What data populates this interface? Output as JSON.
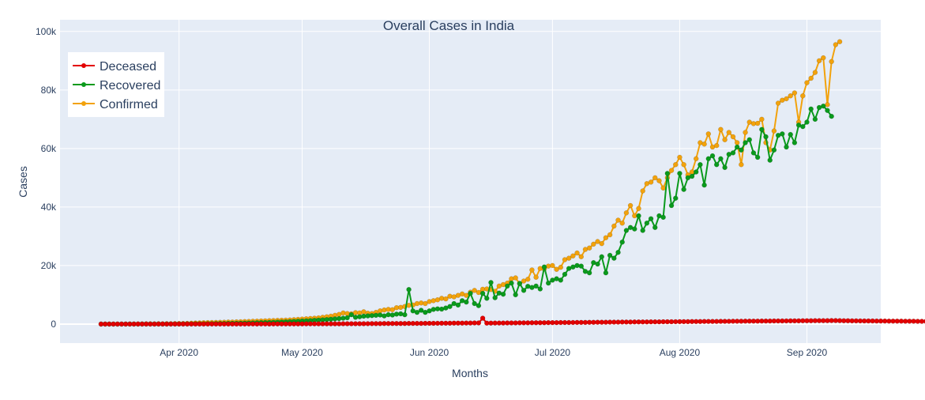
{
  "chart_data": {
    "type": "line",
    "title": "Overall Cases in India",
    "xlabel": "Months",
    "ylabel": "Cases",
    "x_start": "2020-03-13",
    "x_end": "2020-09-09",
    "x_range": [
      "2020-03-03",
      "2020-09-19"
    ],
    "x_ticks": [
      {
        "date": "2020-04-01",
        "label": "Apr 2020"
      },
      {
        "date": "2020-05-01",
        "label": "May 2020"
      },
      {
        "date": "2020-06-01",
        "label": "Jun 2020"
      },
      {
        "date": "2020-07-01",
        "label": "Jul 2020"
      },
      {
        "date": "2020-08-01",
        "label": "Aug 2020"
      },
      {
        "date": "2020-09-01",
        "label": "Sep 2020"
      }
    ],
    "ylim": [
      -6500,
      104000
    ],
    "y_ticks": [
      {
        "value": 0,
        "label": "0"
      },
      {
        "value": 20000,
        "label": "20k"
      },
      {
        "value": 40000,
        "label": "40k"
      },
      {
        "value": 60000,
        "label": "60k"
      },
      {
        "value": 80000,
        "label": "80k"
      },
      {
        "value": 100000,
        "label": "100k"
      }
    ],
    "grid": true,
    "legend_position": "top-left",
    "background": "#e5ecf6",
    "series": [
      {
        "name": "Deceased",
        "color": "#e30000",
        "values": [
          0,
          0,
          1,
          0,
          0,
          0,
          0,
          0,
          1,
          2,
          1,
          3,
          1,
          0,
          4,
          2,
          1,
          4,
          6,
          5,
          3,
          7,
          10,
          10,
          14,
          9,
          21,
          16,
          12,
          30,
          16,
          20,
          23,
          21,
          34,
          26,
          37,
          36,
          29,
          46,
          42,
          34,
          42,
          49,
          58,
          45,
          61,
          57,
          52,
          65,
          70,
          72,
          80,
          86,
          85,
          91,
          90,
          95,
          86,
          103,
          107,
          110,
          115,
          122,
          132,
          136,
          146,
          148,
          160,
          175,
          170,
          183,
          190,
          194,
          200,
          213,
          216,
          221,
          228,
          240,
          250,
          260,
          271,
          279,
          287,
          300,
          311,
          325,
          336,
          345,
          357,
          380,
          396,
          2000,
          312,
          336,
          341,
          356,
          360,
          375,
          380,
          400,
          410,
          420,
          430,
          440,
          450,
          460,
          470,
          480,
          490,
          500,
          510,
          520,
          530,
          540,
          550,
          560,
          570,
          585,
          600,
          610,
          620,
          640,
          650,
          660,
          670,
          680,
          690,
          700,
          710,
          720,
          730,
          740,
          750,
          760,
          770,
          780,
          790,
          800,
          810,
          820,
          830,
          840,
          850,
          860,
          870,
          880,
          890,
          900,
          910,
          920,
          930,
          940,
          950,
          960,
          970,
          980,
          990,
          1000,
          1010,
          1020,
          1030,
          1040,
          1050,
          1060,
          1070,
          1080,
          1090,
          1100,
          1110,
          1120,
          1130,
          1140,
          1150,
          1160,
          1170,
          1180,
          1190,
          1200,
          1180,
          1140,
          1120,
          1100,
          1090,
          1080,
          1070,
          1060,
          1050,
          1040,
          1030,
          1020,
          1010,
          1000,
          990,
          980,
          970,
          960,
          950,
          940,
          930,
          920,
          910,
          900
        ],
        "values_note": "rises from 0 to about 1200"
      },
      {
        "name": "Recovered",
        "color": "#0a9a1c",
        "values": [
          0,
          0,
          0,
          1,
          0,
          1,
          0,
          2,
          3,
          1,
          2,
          4,
          6,
          8,
          10,
          12,
          15,
          20,
          25,
          30,
          40,
          50,
          60,
          70,
          80,
          95,
          110,
          130,
          150,
          170,
          190,
          215,
          240,
          270,
          300,
          330,
          360,
          400,
          440,
          480,
          520,
          560,
          600,
          650,
          700,
          760,
          820,
          880,
          950,
          1020,
          1100,
          1180,
          1260,
          1350,
          1440,
          1540,
          1650,
          1760,
          1880,
          2000,
          2150,
          3200,
          2300,
          2500,
          2700,
          2800,
          2900,
          3000,
          3100,
          2800,
          3200,
          3100,
          3400,
          3500,
          3200,
          11800,
          4500,
          4000,
          4700,
          4000,
          4500,
          5000,
          5200,
          5100,
          5500,
          6000,
          7000,
          6500,
          8000,
          7500,
          10500,
          7000,
          6300,
          10500,
          8800,
          14200,
          9000,
          10600,
          10200,
          13000,
          14000,
          10000,
          13900,
          11500,
          12900,
          12500,
          13000,
          12000,
          19500,
          14000,
          15000,
          15500,
          15000,
          17000,
          19000,
          19500,
          20000,
          19800,
          18000,
          17500,
          21000,
          20500,
          23000,
          17500,
          23500,
          22500,
          24500,
          28000,
          32000,
          33000,
          32500,
          37000,
          32000,
          34500,
          36000,
          33000,
          37000,
          36500,
          51500,
          40500,
          43000,
          51500,
          46000,
          50000,
          50500,
          52000,
          54500,
          47500,
          56500,
          57500,
          54500,
          56500,
          53500,
          58000,
          58500,
          60500,
          59500,
          62000,
          63000,
          58500,
          57000,
          66500,
          64000,
          56000,
          59500,
          64500,
          65000,
          60500,
          64800,
          62000,
          68000,
          67500,
          69000,
          73500,
          70000,
          74000,
          74500,
          73000,
          71000
        ]
      },
      {
        "name": "Confirmed",
        "color": "#f2a20c",
        "values": [
          1,
          3,
          4,
          3,
          5,
          8,
          14,
          22,
          24,
          39,
          63,
          75,
          88,
          68,
          102,
          73,
          130,
          120,
          150,
          180,
          190,
          230,
          300,
          350,
          400,
          460,
          500,
          530,
          560,
          600,
          640,
          680,
          700,
          750,
          800,
          850,
          900,
          950,
          1000,
          1050,
          1100,
          1150,
          1200,
          1250,
          1300,
          1350,
          1400,
          1500,
          1600,
          1700,
          1800,
          1900,
          2000,
          2100,
          2300,
          2500,
          2700,
          3000,
          3300,
          3800,
          3600,
          3500,
          3900,
          3800,
          4200,
          3700,
          3600,
          4000,
          4500,
          4800,
          5000,
          4900,
          5600,
          5700,
          6000,
          6400,
          6500,
          7000,
          7200,
          7000,
          7700,
          8000,
          8300,
          8800,
          8600,
          9500,
          9300,
          9800,
          10300,
          9800,
          10900,
          11500,
          10800,
          11900,
          12000,
          11800,
          11200,
          13000,
          13500,
          14000,
          15500,
          15800,
          13800,
          14700,
          15300,
          18500,
          16000,
          19000,
          18800,
          19800,
          20000,
          18700,
          19400,
          22000,
          22500,
          23300,
          24300,
          23000,
          25500,
          26000,
          27300,
          28200,
          27500,
          29500,
          30500,
          33500,
          35500,
          34500,
          38000,
          40500,
          37000,
          39500,
          45500,
          48000,
          48500,
          50000,
          49000,
          46500,
          50000,
          52500,
          54500,
          57000,
          54500,
          51000,
          52000,
          56500,
          62000,
          61500,
          65000,
          60500,
          61000,
          66500,
          63000,
          65500,
          64000,
          62000,
          54500,
          65500,
          69000,
          68500,
          68600,
          70000,
          62000,
          59500,
          66000,
          75500,
          76500,
          77000,
          78000,
          79000,
          69000,
          78000,
          82500,
          84000,
          86000,
          90000,
          91000,
          75000,
          89700,
          95500,
          96500
        ]
      }
    ]
  }
}
